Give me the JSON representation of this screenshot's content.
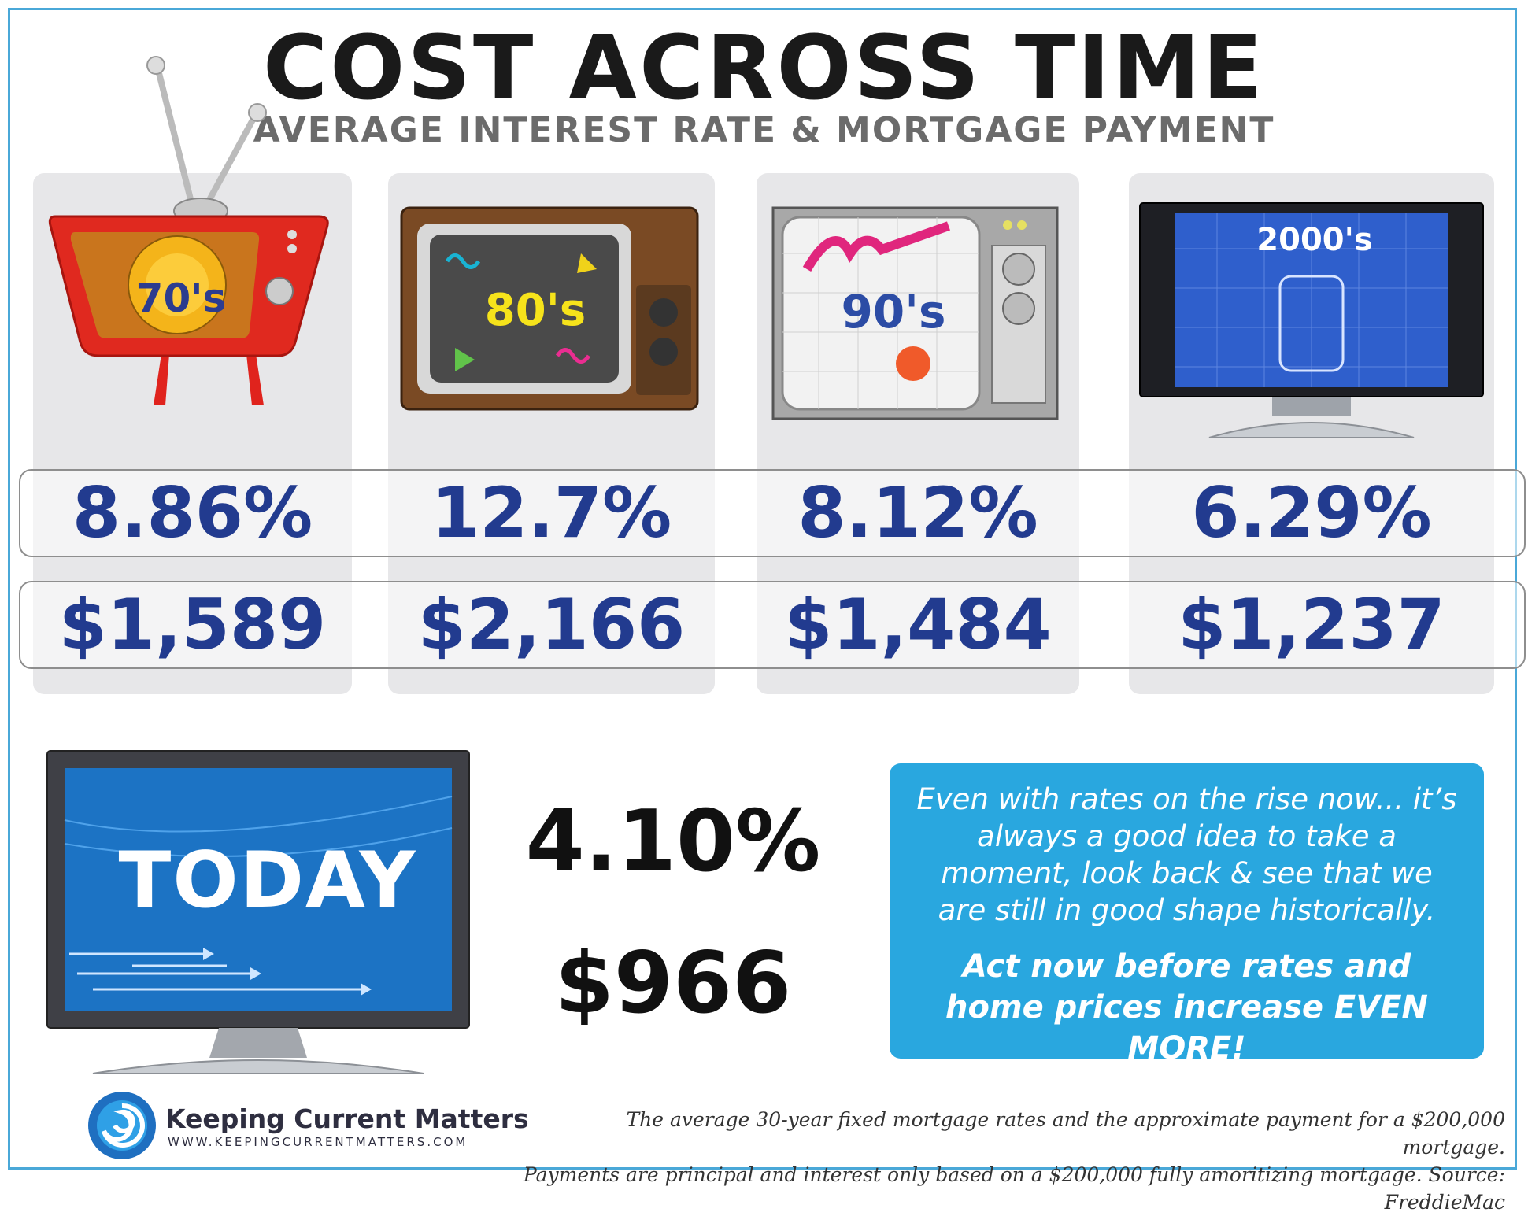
{
  "header": {
    "title": "COST ACROSS TIME",
    "subtitle": "AVERAGE INTEREST RATE & MORTGAGE PAYMENT"
  },
  "eras": [
    {
      "label": "70's",
      "rate": "8.86%",
      "payment": "$1,589"
    },
    {
      "label": "80's",
      "rate": "12.7%",
      "payment": "$2,166"
    },
    {
      "label": "90's",
      "rate": "8.12%",
      "payment": "$1,484"
    },
    {
      "label": "2000's",
      "rate": "6.29%",
      "payment": "$1,237"
    }
  ],
  "today": {
    "label": "TODAY",
    "rate": "4.10%",
    "payment": "$966"
  },
  "message": {
    "text": "Even with rates on the rise now... it’s always a good idea to take a moment, look back & see that we are still in good shape historically.",
    "cta": "Act now before rates and home prices increase EVEN MORE!"
  },
  "brand": {
    "name": "Keeping Current Matters",
    "url": "WWW.KEEPINGCURRENTMATTERS.COM",
    "icon": "swirl-logo-icon"
  },
  "footnote": {
    "line1": "The average 30-year fixed mortgage rates and the approximate payment for a $200,000 mortgage.",
    "line2": "Payments are principal and interest only based on a $200,000 fully amoritizing mortgage. Source: FreddieMac"
  },
  "colors": {
    "value_blue": "#223b8f",
    "frame_blue": "#4aa8d8",
    "message_bg": "#29a7df",
    "card_gray": "#e7e7e9"
  }
}
